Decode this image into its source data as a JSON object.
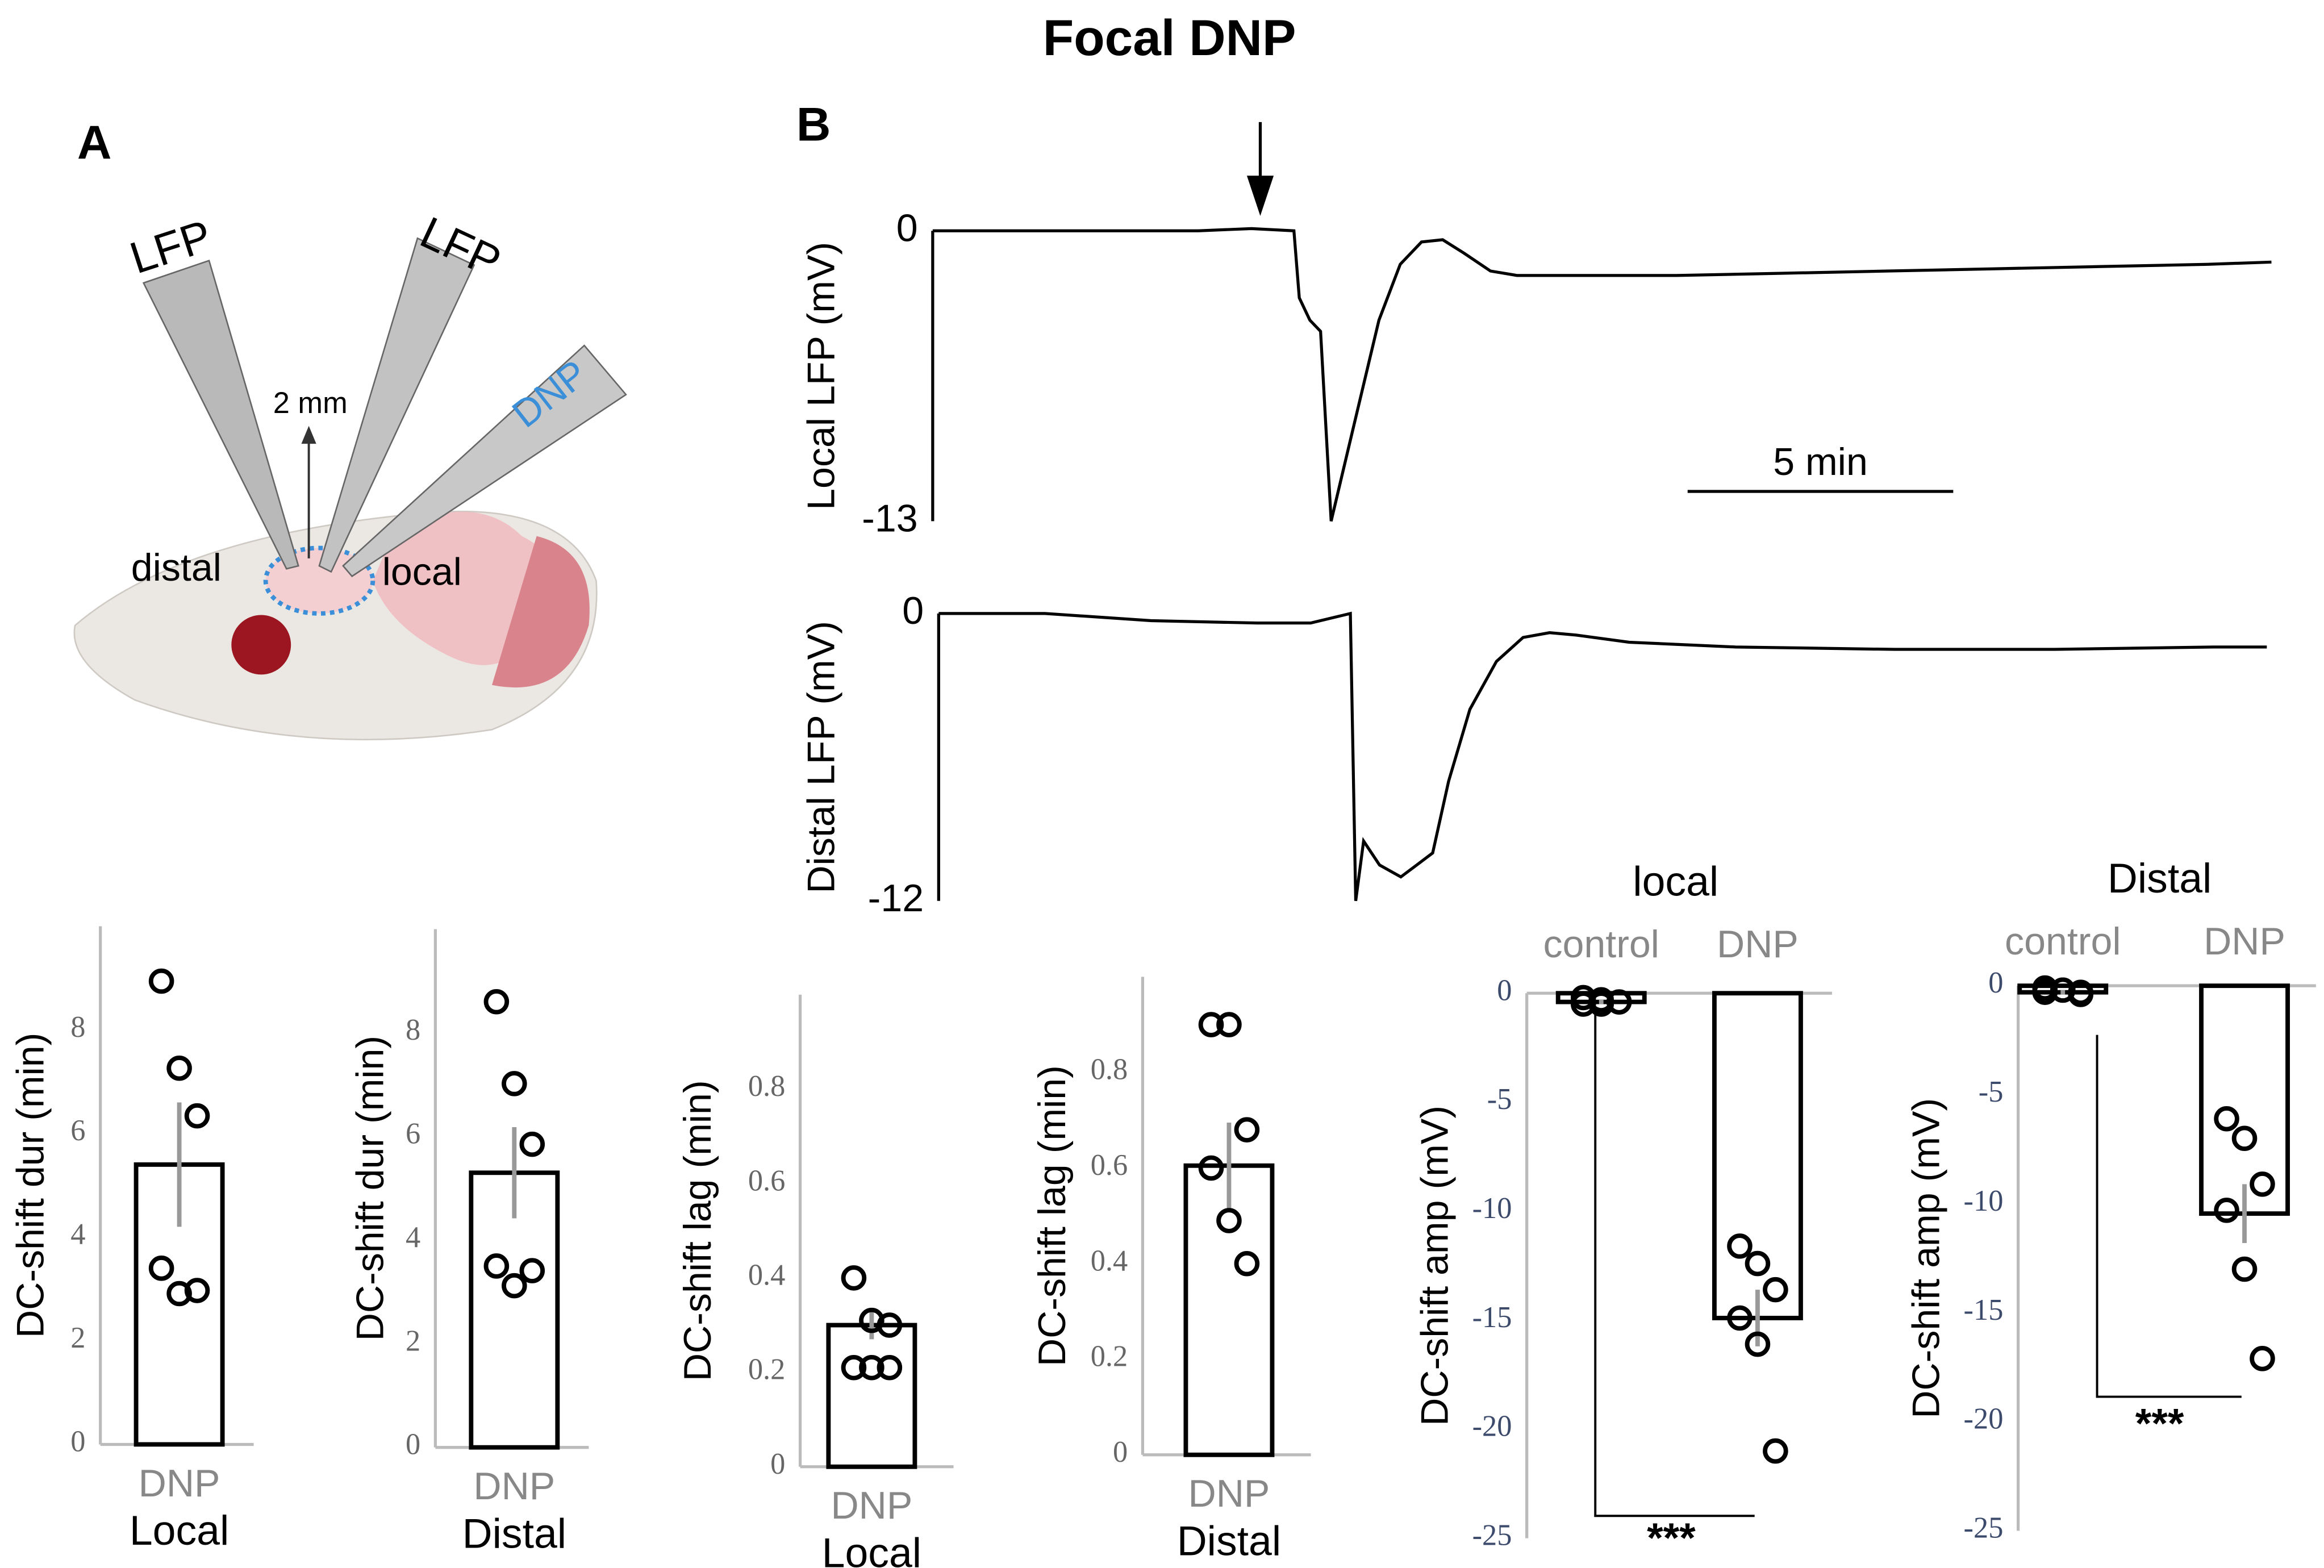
{
  "title": "Focal DNP",
  "panels": [
    "A",
    "B"
  ],
  "diagram": {
    "labels": [
      "LFP",
      "LFP",
      "DNP",
      "2 mm",
      "distal",
      "local"
    ]
  },
  "chart_data": [
    {
      "type": "line",
      "ylabel": "Local LFP (mV)",
      "xlim": [
        0,
        25
      ],
      "ylim": [
        -13,
        0
      ],
      "yticks": [
        -13,
        0
      ],
      "color": "#000000",
      "scale_bar": {
        "value": 5,
        "label": "5 min"
      },
      "x": [
        0,
        1,
        2,
        3,
        4,
        5,
        6,
        6.8,
        6.9,
        7.1,
        7.3,
        7.5,
        7.7,
        8.0,
        8.4,
        8.8,
        9.2,
        9.6,
        10.0,
        10.5,
        11,
        12,
        14,
        16,
        18,
        20,
        22,
        24,
        25.2
      ],
      "values": [
        0,
        0,
        0,
        0,
        0,
        0,
        0.1,
        0,
        -3,
        -4,
        -4.5,
        -13,
        -11,
        -8,
        -4,
        -1.5,
        -0.5,
        -0.4,
        -1,
        -1.8,
        -2,
        -2,
        -2,
        -1.9,
        -1.8,
        -1.7,
        -1.6,
        -1.5,
        -1.4
      ]
    },
    {
      "type": "line",
      "ylabel": "Distal LFP (mV)",
      "xlim": [
        0,
        25
      ],
      "ylim": [
        -12,
        0
      ],
      "yticks": [
        -12,
        0
      ],
      "color": "#000000",
      "x": [
        0,
        2,
        4,
        6,
        7,
        7.75,
        7.85,
        8.0,
        8.3,
        8.7,
        9.0,
        9.3,
        9.6,
        10,
        10.5,
        11,
        11.5,
        12,
        13,
        15,
        18,
        21,
        24,
        25
      ],
      "values": [
        0,
        0,
        -0.3,
        -0.4,
        -0.4,
        0,
        -12,
        -9.5,
        -10.5,
        -11,
        -10.5,
        -10,
        -7,
        -4,
        -2,
        -1,
        -0.8,
        -0.9,
        -1.2,
        -1.4,
        -1.5,
        -1.5,
        -1.4,
        -1.4
      ]
    },
    {
      "type": "bar",
      "ylabel": "DC-shift dur (min)",
      "xlabel": "Local",
      "categories": [
        "DNP"
      ],
      "values": [
        5.4
      ],
      "errors": [
        1.2
      ],
      "points": [
        [
          8.94,
          7.26,
          6.34,
          3.4,
          2.91,
          2.97
        ]
      ],
      "ylim": [
        0,
        10
      ],
      "yticks": [
        0,
        2,
        4,
        6,
        8
      ]
    },
    {
      "type": "bar",
      "ylabel": "DC-shift dur (min)",
      "xlabel": "Distal",
      "categories": [
        "DNP"
      ],
      "values": [
        5.3
      ],
      "errors": [
        0.88
      ],
      "points": [
        [
          8.6,
          7.02,
          5.85,
          3.5,
          3.12,
          3.41
        ]
      ],
      "ylim": [
        0,
        10
      ],
      "yticks": [
        0,
        2,
        4,
        6,
        8
      ]
    },
    {
      "type": "bar",
      "ylabel": "DC-shift lag (min)",
      "xlabel": "Local",
      "categories": [
        "DNP"
      ],
      "values": [
        0.3
      ],
      "errors": [
        0.03
      ],
      "points": [
        [
          0.4,
          0.31,
          0.3,
          0.21,
          0.21,
          0.21
        ]
      ],
      "ylim": [
        0,
        1
      ],
      "yticks": [
        0,
        0.2,
        0.4,
        0.6,
        0.8
      ]
    },
    {
      "type": "bar",
      "ylabel": "DC-shift lag (min)",
      "xlabel": "Distal",
      "categories": [
        "DNP"
      ],
      "values": [
        0.605
      ],
      "errors": [
        0.09
      ],
      "points": [
        [
          0.9,
          0.9,
          0.68,
          0.6,
          0.49,
          0.4
        ]
      ],
      "ylim": [
        0,
        1
      ],
      "yticks": [
        0,
        0.2,
        0.4,
        0.6,
        0.8
      ]
    },
    {
      "type": "bar",
      "title": "local",
      "ylabel": "DC-shift amp (mV)",
      "categories": [
        "control",
        "DNP"
      ],
      "values": [
        -0.4,
        -14.9
      ],
      "errors": [
        0.1,
        1.3
      ],
      "points": [
        [
          -0.2,
          -0.3,
          -0.4,
          -0.5,
          -0.5,
          -0.4
        ],
        [
          -11.6,
          -12.4,
          -13.6,
          -14.9,
          -16.1,
          -21
        ]
      ],
      "significance": "***",
      "ylim": [
        -25,
        0
      ],
      "yticks": [
        -25,
        -20,
        -15,
        -10,
        -5,
        0
      ]
    },
    {
      "type": "bar",
      "title": "Distal",
      "ylabel": "DC-shift amp (mV)",
      "categories": [
        "control",
        "DNP"
      ],
      "values": [
        -0.3,
        -10.45
      ],
      "errors": [
        0.1,
        1.35
      ],
      "points": [
        [
          -0.1,
          -0.2,
          -0.3,
          -0.3,
          -0.2,
          -0.4
        ],
        [
          -6.1,
          -7.0,
          -9.1,
          -10.3,
          -13.0,
          -17.1
        ]
      ],
      "significance": "***",
      "ylim": [
        -25,
        0
      ],
      "yticks": [
        -25,
        -20,
        -15,
        -10,
        -5,
        0
      ]
    }
  ]
}
